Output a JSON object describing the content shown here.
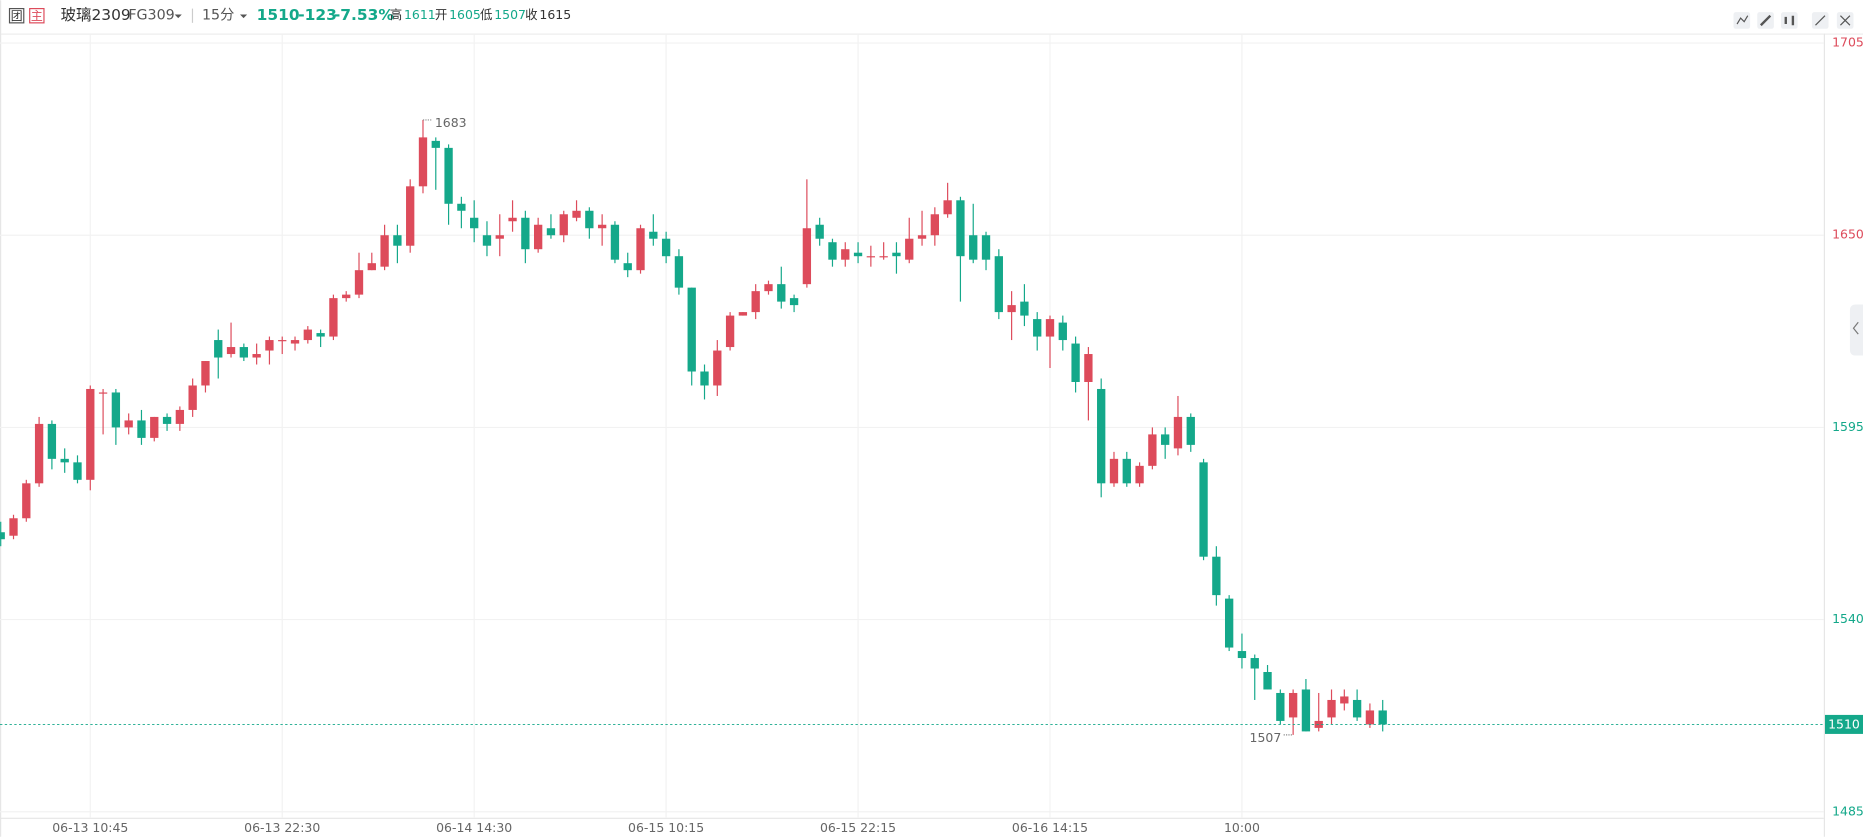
{
  "header": {
    "icon_group": "团",
    "icon_main": "主",
    "name": "玻璃2309",
    "code": "FG309",
    "period": "15分",
    "last": "1510",
    "change": "-123",
    "change_pct": "-7.53%",
    "high_label": "高",
    "high": "1611",
    "open_label": "开",
    "open": "1605",
    "low_label": "低",
    "low": "1507",
    "close_label": "收",
    "close": "1615"
  },
  "chart_data": {
    "type": "candlestick",
    "categories": [
      null,
      null,
      null,
      null,
      null,
      null,
      null,
      "06-13 10:45",
      null,
      null,
      null,
      null,
      null,
      null,
      null,
      null,
      null,
      null,
      null,
      null,
      null,
      null,
      "06-13 22:30",
      null,
      null,
      null,
      null,
      null,
      null,
      null,
      null,
      null,
      null,
      null,
      null,
      null,
      null,
      "06-14 14:30",
      null,
      null,
      null,
      null,
      null,
      null,
      null,
      null,
      null,
      null,
      null,
      null,
      null,
      null,
      "06-15 10:15",
      null,
      null,
      null,
      null,
      null,
      null,
      null,
      null,
      null,
      null,
      null,
      null,
      null,
      null,
      "06-15 22:15",
      null,
      null,
      null,
      null,
      null,
      null,
      null,
      null,
      null,
      null,
      null,
      null,
      null,
      null,
      "06-16 14:15",
      null,
      null,
      null,
      null,
      null,
      null,
      null,
      null,
      null,
      null,
      null,
      null,
      null,
      null,
      "10:00",
      null,
      null,
      null,
      null,
      null,
      null,
      null,
      null,
      null,
      null,
      null
    ],
    "open": [
      1565,
      1564,
      1569,
      1579,
      1596,
      1586,
      1585,
      1580,
      1605,
      1605,
      1595,
      1597,
      1592,
      1598,
      1596,
      1600,
      1607,
      1620,
      1616,
      1618,
      1615,
      1617,
      1620,
      1619,
      1620,
      1622,
      1621,
      1632,
      1633,
      1640,
      1641,
      1650,
      1647,
      1664,
      1677,
      1675,
      1659,
      1655,
      1650,
      1649,
      1654,
      1655,
      1646,
      1652,
      1650,
      1655,
      1657,
      1652,
      1653,
      1642,
      1640,
      1651,
      1649,
      1644,
      1635,
      1611,
      1607,
      1618,
      1627,
      1628,
      1634,
      1636,
      1632,
      1636,
      1653,
      1648,
      1643,
      1645,
      1644,
      1644,
      1645,
      1643,
      1649,
      1650,
      1656,
      1660,
      1650,
      1650,
      1644,
      1628,
      1631,
      1626,
      1621,
      1625,
      1619,
      1608,
      1606,
      1579,
      1586,
      1579,
      1584,
      1593,
      1589,
      1598,
      1585,
      1558,
      1546,
      1531,
      1529,
      1525,
      1519,
      1512,
      1520,
      1509,
      1512,
      1516,
      1517,
      1510,
      1514
    ],
    "high": [
      1568,
      1570,
      1580,
      1598,
      1597,
      1589,
      1587,
      1607,
      1606,
      1606,
      1599,
      1600,
      1598,
      1599,
      1601,
      1609,
      1614,
      1623,
      1625,
      1619,
      1619,
      1621,
      1621,
      1621,
      1624,
      1623,
      1633,
      1634,
      1645,
      1645,
      1653,
      1653,
      1666,
      1683,
      1678,
      1676,
      1661,
      1660,
      1654,
      1656,
      1660,
      1657,
      1655,
      1656,
      1657,
      1660,
      1658,
      1656,
      1654,
      1645,
      1653,
      1656,
      1651,
      1646,
      1635,
      1613,
      1620,
      1628,
      1628,
      1636,
      1637,
      1641,
      1633,
      1666,
      1655,
      1649,
      1648,
      1648,
      1647,
      1648,
      1648,
      1655,
      1657,
      1658,
      1665,
      1661,
      1659,
      1651,
      1646,
      1634,
      1636,
      1628,
      1627,
      1627,
      1621,
      1618,
      1609,
      1588,
      1588,
      1585,
      1595,
      1595,
      1604,
      1599,
      1586,
      1561,
      1547,
      1536,
      1530,
      1527,
      1520,
      1520,
      1523,
      1519,
      1520,
      1520,
      1520,
      1516,
      1517
    ],
    "low": [
      1561,
      1563,
      1568,
      1578,
      1583,
      1582,
      1579,
      1577,
      1593,
      1590,
      1593,
      1590,
      1591,
      1594,
      1594,
      1598,
      1605,
      1609,
      1615,
      1614,
      1613,
      1613,
      1616,
      1617,
      1619,
      1618,
      1620,
      1631,
      1632,
      1640,
      1640,
      1642,
      1645,
      1662,
      1663,
      1653,
      1652,
      1648,
      1644,
      1644,
      1651,
      1642,
      1645,
      1649,
      1648,
      1654,
      1649,
      1647,
      1642,
      1638,
      1639,
      1647,
      1642,
      1633,
      1607,
      1603,
      1604,
      1617,
      1627,
      1626,
      1633,
      1629,
      1628,
      1635,
      1647,
      1641,
      1641,
      1642,
      1641,
      1643,
      1639,
      1642,
      1647,
      1647,
      1655,
      1631,
      1642,
      1640,
      1626,
      1620,
      1624,
      1617,
      1612,
      1617,
      1605,
      1597,
      1575,
      1578,
      1578,
      1578,
      1583,
      1586,
      1587,
      1588,
      1557,
      1544,
      1531,
      1526,
      1517,
      1520,
      1510,
      1507,
      1508,
      1508,
      1510,
      1514,
      1511,
      1509,
      1508
    ],
    "close": [
      1563,
      1569,
      1579,
      1596,
      1586,
      1585,
      1580,
      1606,
      1605,
      1595,
      1597,
      1592,
      1598,
      1596,
      1600,
      1607,
      1614,
      1615,
      1618,
      1615,
      1616,
      1620,
      1620,
      1620,
      1623,
      1621,
      1632,
      1633,
      1640,
      1642,
      1650,
      1647,
      1664,
      1678,
      1675,
      1659,
      1657,
      1652,
      1647,
      1650,
      1655,
      1646,
      1653,
      1650,
      1656,
      1657,
      1652,
      1653,
      1643,
      1640,
      1652,
      1649,
      1644,
      1635,
      1611,
      1607,
      1617,
      1627,
      1628,
      1634,
      1636,
      1631,
      1630,
      1652,
      1649,
      1643,
      1646,
      1644,
      1644,
      1644,
      1644,
      1649,
      1650,
      1656,
      1660,
      1644,
      1643,
      1643,
      1628,
      1630,
      1627,
      1621,
      1626,
      1620,
      1608,
      1616,
      1579,
      1586,
      1579,
      1584,
      1593,
      1590,
      1598,
      1590,
      1558,
      1547,
      1532,
      1529,
      1526,
      1520,
      1511,
      1519,
      1508,
      1511,
      1517,
      1518,
      1512,
      1514,
      1510
    ],
    "up_color": "#dd4b5b",
    "down_color": "#14a88a",
    "ylim": [
      1485,
      1705
    ],
    "yticks": [
      1485,
      1540,
      1595,
      1650,
      1705
    ],
    "grid": true
  }
}
